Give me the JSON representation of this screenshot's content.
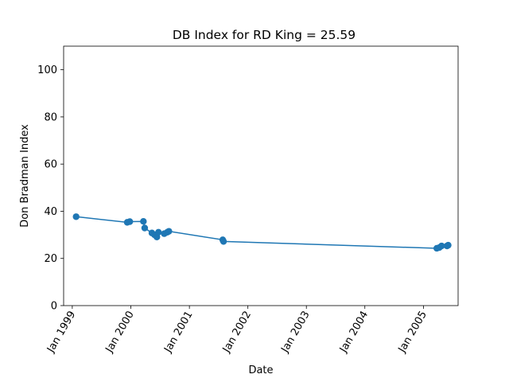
{
  "chart_data": {
    "type": "line",
    "title": "DB Index for RD King = 25.59",
    "xlabel": "Date",
    "ylabel": "Don Bradman Index",
    "ylim": [
      0,
      110
    ],
    "xlim": [
      "1998-11-08",
      "2005-08-05"
    ],
    "yticks": [
      0,
      20,
      40,
      60,
      80,
      100
    ],
    "xticks": [
      {
        "date": "1999-01-01",
        "label": "Jan 1999"
      },
      {
        "date": "2000-01-01",
        "label": "Jan 2000"
      },
      {
        "date": "2001-01-01",
        "label": "Jan 2001"
      },
      {
        "date": "2002-01-01",
        "label": "Jan 2002"
      },
      {
        "date": "2003-01-01",
        "label": "Jan 2003"
      },
      {
        "date": "2004-01-01",
        "label": "Jan 2004"
      },
      {
        "date": "2005-01-01",
        "label": "Jan 2005"
      }
    ],
    "grid": false,
    "line_color": "#1f77b4",
    "series": [
      {
        "x": [
          "1999-01-25",
          "1999-12-10",
          "1999-12-26",
          "2000-03-20",
          "2000-03-28",
          "2000-05-12",
          "2000-05-28",
          "2000-06-12",
          "2000-06-22",
          "2000-07-28",
          "2000-08-16",
          "2000-08-26",
          "2001-07-28",
          "2001-08-02",
          "2005-03-25",
          "2005-04-10",
          "2005-04-24",
          "2005-05-28",
          "2005-06-04"
        ],
        "y": [
          37.7,
          35.3,
          35.6,
          35.7,
          32.9,
          30.8,
          30.0,
          29.1,
          31.1,
          30.5,
          31.1,
          31.5,
          27.9,
          27.2,
          24.3,
          24.6,
          25.3,
          25.3,
          25.6
        ]
      }
    ]
  }
}
